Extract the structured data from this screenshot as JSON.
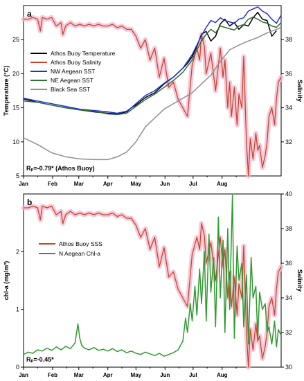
{
  "chart_data": [
    {
      "type": "line",
      "panel_label": "a",
      "xlabel": "",
      "ylabel": "Temperature (°C)",
      "ylabel_right": "Salinity",
      "ylim": [
        5,
        30
      ],
      "ylim_right": [
        30,
        40
      ],
      "yticks": [
        5,
        10,
        15,
        20,
        25
      ],
      "yticks_right": [
        32,
        34,
        36,
        38
      ],
      "months": [
        "Jan",
        "Feb",
        "Mar",
        "Apr",
        "May",
        "Jun",
        "Jul",
        "Aug"
      ],
      "xlim_days": [
        0,
        275
      ],
      "annotation": "Rₚ=-0.79* (Athos Buoy)",
      "legend_position": "upper-left",
      "series": [
        {
          "name": "Athos Buoy Temperature",
          "color": "#000000",
          "axis": "left",
          "x": [
            0,
            15,
            30,
            45,
            60,
            75,
            90,
            100,
            110,
            115,
            120,
            130,
            140,
            150,
            160,
            170,
            175,
            180,
            185,
            190,
            195,
            200,
            205,
            210,
            215,
            220,
            225,
            230,
            235,
            240,
            245,
            250,
            255,
            260,
            265,
            270
          ],
          "y": [
            16.3,
            15.8,
            15.4,
            15.0,
            14.7,
            14.4,
            14.2,
            14.1,
            14.4,
            15.0,
            15.4,
            16.5,
            17.2,
            18.5,
            19.5,
            20.8,
            21.5,
            22.5,
            24.0,
            25.8,
            26.2,
            24.8,
            25.5,
            27.3,
            28.0,
            27.0,
            27.5,
            26.5,
            27.2,
            27.0,
            28.2,
            29.0,
            28.0,
            27.8,
            25.5,
            26.3
          ]
        },
        {
          "name": "Athos Buoy Salinity",
          "color": "#c8442a",
          "axis": "right",
          "x": [
            0,
            5,
            10,
            15,
            18,
            20,
            25,
            30,
            35,
            40,
            42,
            45,
            50,
            55,
            60,
            65,
            70,
            75,
            80,
            85,
            90,
            95,
            100,
            105,
            110,
            115,
            120,
            125,
            130,
            135,
            140,
            145,
            150,
            155,
            160,
            165,
            170,
            175,
            180,
            185,
            188,
            190,
            193,
            195,
            200,
            205,
            210,
            213,
            215,
            218,
            220,
            222,
            225,
            228,
            230,
            233,
            235,
            238,
            240,
            242,
            245,
            248,
            250,
            252,
            255,
            258,
            260,
            262,
            265,
            268,
            270,
            272,
            275
          ],
          "y": [
            39.2,
            39.2,
            39.3,
            39.2,
            38.5,
            39.3,
            39.2,
            39.3,
            38.8,
            39.0,
            38.3,
            38.8,
            39.0,
            38.8,
            38.9,
            38.8,
            38.9,
            38.8,
            38.9,
            38.8,
            38.8,
            38.9,
            38.7,
            38.8,
            38.6,
            38.6,
            38.2,
            37.5,
            38.0,
            36.8,
            37.5,
            35.8,
            36.9,
            35.2,
            35.5,
            34.5,
            34.0,
            33.5,
            36.5,
            37.5,
            36.8,
            38.3,
            37.6,
            36.0,
            37.2,
            35.0,
            37.5,
            35.8,
            36.8,
            34.0,
            35.5,
            33.5,
            35.2,
            33.0,
            34.8,
            34.0,
            37.0,
            32.0,
            30.0,
            32.2,
            31.0,
            32.5,
            31.5,
            31.8,
            30.5,
            31.2,
            32.0,
            33.5,
            34.0,
            33.0,
            34.5,
            35.5,
            35.8
          ]
        },
        {
          "name": "NW Aegean SST",
          "color": "#2030d8",
          "axis": "left",
          "x": [
            0,
            15,
            30,
            45,
            60,
            75,
            90,
            100,
            110,
            115,
            120,
            130,
            140,
            150,
            160,
            170,
            180,
            185,
            190,
            195,
            200,
            205,
            210,
            215,
            220,
            225,
            230,
            235,
            240,
            245,
            250,
            255,
            260,
            265,
            270,
            275
          ],
          "y": [
            16.4,
            16.0,
            15.6,
            15.2,
            14.8,
            14.6,
            14.4,
            14.2,
            14.5,
            15.0,
            15.6,
            16.8,
            17.5,
            18.6,
            19.5,
            20.8,
            22.8,
            24.2,
            25.6,
            26.8,
            27.8,
            27.5,
            28.2,
            27.8,
            27.6,
            27.4,
            28.0,
            28.2,
            29.2,
            29.5,
            29.8,
            29.2,
            28.8,
            28.0,
            27.4,
            28.6
          ]
        },
        {
          "name": "NE Aegean SST",
          "color": "#2f6e2f",
          "axis": "left",
          "x": [
            0,
            15,
            30,
            45,
            60,
            75,
            90,
            100,
            110,
            115,
            120,
            130,
            140,
            150,
            160,
            170,
            180,
            185,
            190,
            195,
            200,
            205,
            210,
            215,
            220,
            225,
            230,
            235,
            240,
            245,
            250,
            255,
            260,
            265,
            270,
            275
          ],
          "y": [
            16.0,
            15.8,
            15.4,
            15.0,
            14.7,
            14.5,
            14.1,
            14.0,
            14.2,
            14.7,
            15.2,
            16.2,
            17.0,
            18.0,
            19.0,
            20.2,
            22.0,
            23.5,
            24.8,
            25.8,
            26.5,
            26.0,
            27.0,
            26.8,
            26.6,
            26.4,
            27.0,
            27.2,
            28.0,
            28.3,
            28.0,
            27.6,
            27.4,
            27.0,
            26.8,
            27.5
          ]
        },
        {
          "name": "Black Sea SST",
          "color": "#909090",
          "axis": "left",
          "x": [
            0,
            15,
            30,
            45,
            60,
            75,
            90,
            100,
            110,
            120,
            130,
            140,
            150,
            160,
            170,
            180,
            190,
            200,
            210,
            220,
            230,
            240,
            250,
            260,
            270,
            275
          ],
          "y": [
            10.6,
            9.6,
            8.4,
            7.8,
            7.5,
            7.4,
            7.4,
            7.8,
            8.5,
            10.0,
            12.2,
            13.5,
            14.8,
            15.6,
            16.4,
            17.2,
            18.5,
            19.8,
            21.8,
            23.5,
            24.2,
            24.8,
            25.3,
            26.0,
            26.5,
            26.8
          ]
        }
      ]
    },
    {
      "type": "line",
      "panel_label": "b",
      "xlabel": "",
      "ylabel": "chl-a (mg/m³)",
      "ylabel_right": "Salinity",
      "ylim": [
        0,
        3
      ],
      "ylim_right": [
        30,
        40
      ],
      "yticks": [
        0,
        1,
        2
      ],
      "yticks_right": [
        30,
        32,
        34,
        36,
        38,
        40
      ],
      "months": [
        "Jan",
        "Feb",
        "Mar",
        "Apr",
        "May",
        "Jun",
        "Jul",
        "Aug"
      ],
      "xlim_days": [
        0,
        275
      ],
      "annotation": "Rₚ=-0.45*",
      "legend_position": "center-left",
      "series": [
        {
          "name": "Athos Buoy SSS",
          "color": "#c8442a",
          "axis": "right",
          "x": [
            0,
            5,
            10,
            15,
            18,
            20,
            25,
            30,
            35,
            40,
            42,
            45,
            50,
            55,
            60,
            65,
            70,
            75,
            80,
            85,
            90,
            95,
            100,
            105,
            110,
            115,
            120,
            125,
            130,
            135,
            140,
            145,
            150,
            155,
            160,
            165,
            170,
            175,
            180,
            185,
            188,
            190,
            193,
            195,
            200,
            205,
            210,
            213,
            215,
            218,
            220,
            222,
            225,
            228,
            230,
            233,
            235,
            238,
            240,
            242,
            245,
            248,
            250,
            252,
            255,
            258,
            260,
            262,
            265,
            268,
            270,
            272,
            275
          ],
          "y": [
            39.2,
            39.2,
            39.3,
            39.2,
            38.5,
            39.3,
            39.2,
            39.3,
            38.8,
            39.0,
            38.3,
            38.8,
            39.0,
            38.8,
            38.9,
            38.8,
            38.9,
            38.8,
            38.9,
            38.8,
            38.8,
            38.9,
            38.7,
            38.8,
            38.6,
            38.6,
            38.2,
            37.5,
            38.0,
            36.8,
            37.5,
            35.8,
            36.9,
            35.2,
            35.5,
            34.5,
            34.0,
            33.5,
            36.5,
            37.5,
            36.8,
            38.3,
            37.6,
            36.0,
            37.2,
            35.0,
            37.5,
            35.8,
            36.8,
            34.0,
            35.5,
            33.5,
            35.2,
            33.0,
            34.8,
            34.0,
            37.0,
            32.0,
            30.0,
            32.2,
            31.0,
            32.5,
            31.5,
            31.8,
            30.5,
            31.2,
            32.0,
            33.5,
            34.0,
            33.0,
            34.5,
            35.5,
            35.8
          ]
        },
        {
          "name": "N Aegean Chl-a",
          "color": "#2e9a2e",
          "axis": "left",
          "x": [
            0,
            5,
            10,
            15,
            20,
            25,
            30,
            35,
            40,
            45,
            50,
            55,
            58,
            60,
            62,
            65,
            70,
            75,
            80,
            85,
            90,
            95,
            100,
            105,
            110,
            115,
            120,
            125,
            130,
            135,
            140,
            145,
            150,
            155,
            160,
            165,
            170,
            173,
            175,
            178,
            180,
            183,
            185,
            188,
            190,
            193,
            195,
            198,
            200,
            203,
            205,
            208,
            210,
            213,
            215,
            218,
            220,
            223,
            225,
            228,
            230,
            233,
            235,
            238,
            240,
            243,
            245,
            248,
            250,
            252,
            255,
            258,
            260,
            262,
            265,
            268,
            270,
            272,
            275
          ],
          "y": [
            0.22,
            0.26,
            0.24,
            0.3,
            0.28,
            0.33,
            0.29,
            0.35,
            0.3,
            0.36,
            0.32,
            0.42,
            0.75,
            0.5,
            0.38,
            0.33,
            0.3,
            0.34,
            0.29,
            0.31,
            0.28,
            0.32,
            0.27,
            0.3,
            0.25,
            0.28,
            0.24,
            0.22,
            0.26,
            0.23,
            0.2,
            0.24,
            0.19,
            0.22,
            0.25,
            0.3,
            0.45,
            0.85,
            0.6,
            1.1,
            0.8,
            1.4,
            0.9,
            1.7,
            1.1,
            2.0,
            0.8,
            2.3,
            1.3,
            1.9,
            0.7,
            2.6,
            1.2,
            2.2,
            0.6,
            2.4,
            1.0,
            3.0,
            0.5,
            2.1,
            1.5,
            1.8,
            0.7,
            1.6,
            0.4,
            1.9,
            1.2,
            1.4,
            0.5,
            1.3,
            1.0,
            1.1,
            0.6,
            0.7,
            0.4,
            0.8,
            0.35,
            0.65,
            0.55
          ]
        }
      ]
    }
  ],
  "colors": {
    "shade": "#f2b8cf"
  }
}
